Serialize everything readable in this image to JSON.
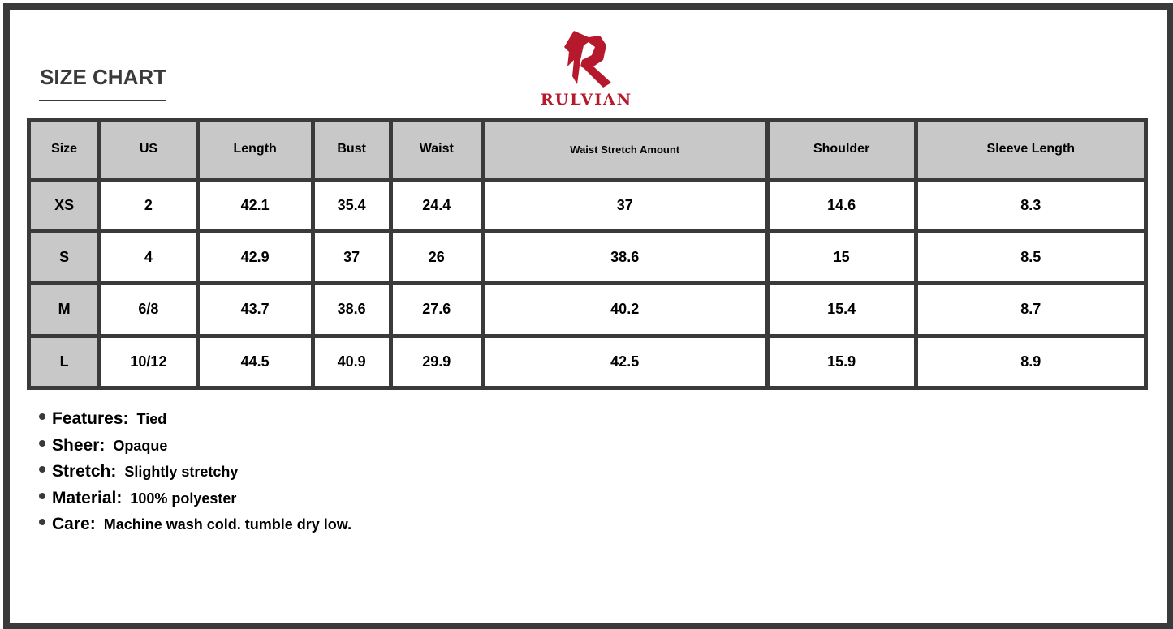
{
  "title": "SIZE CHART",
  "brand": {
    "name": "RULVIAN",
    "color": "#b5192b"
  },
  "table": {
    "headers": [
      "Size",
      "US",
      "Length",
      "Bust",
      "Waist",
      "Waist Stretch Amount",
      "Shoulder",
      "Sleeve Length"
    ],
    "rows": [
      [
        "XS",
        "2",
        "42.1",
        "35.4",
        "24.4",
        "37",
        "14.6",
        "8.3"
      ],
      [
        "S",
        "4",
        "42.9",
        "37",
        "26",
        "38.6",
        "15",
        "8.5"
      ],
      [
        "M",
        "6/8",
        "43.7",
        "38.6",
        "27.6",
        "40.2",
        "15.4",
        "8.7"
      ],
      [
        "L",
        "10/12",
        "44.5",
        "40.9",
        "29.9",
        "42.5",
        "15.9",
        "8.9"
      ]
    ]
  },
  "features": [
    {
      "label": "Features:",
      "value": "Tied"
    },
    {
      "label": "Sheer:",
      "value": "Opaque"
    },
    {
      "label": "Stretch:",
      "value": "Slightly stretchy"
    },
    {
      "label": "Material:",
      "value": "100% polyester"
    },
    {
      "label": "Care:",
      "value": "Machine wash cold. tumble dry low."
    }
  ],
  "colors": {
    "border": "#3a3a3a",
    "header_bg": "#c8c8c8"
  }
}
